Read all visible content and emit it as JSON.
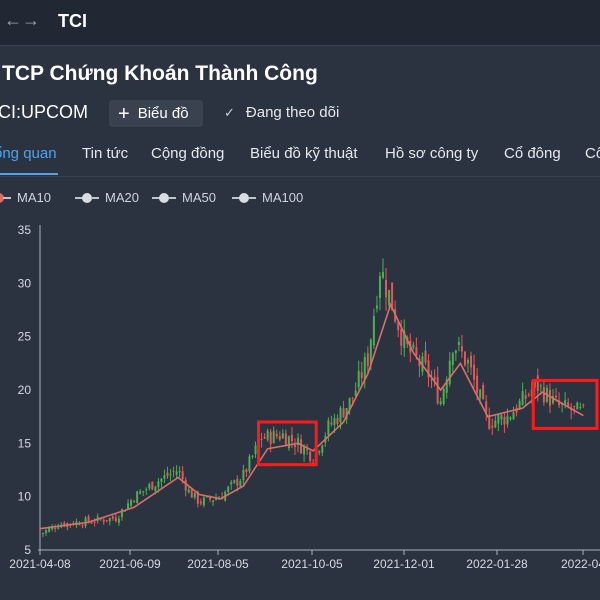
{
  "topbar": {
    "back_icon": "arrow-left-icon",
    "forward_icon": "arrow-right-icon",
    "ticker": "TCI"
  },
  "header": {
    "company_name": "TCP Chứng Khoán Thành Công",
    "exchange": "CI:UPCOM",
    "chart_button_label": "Biểu đồ",
    "follow_label": "Đang theo dõi"
  },
  "tabs": [
    {
      "label": "ổng quan",
      "active": true
    },
    {
      "label": "Tin tức",
      "active": false
    },
    {
      "label": "Cộng đồng",
      "active": false
    },
    {
      "label": "Biểu đồ kỹ thuật",
      "active": false
    },
    {
      "label": "Hồ sơ công ty",
      "active": false
    },
    {
      "label": "Cổ đông",
      "active": false
    },
    {
      "label": "Cô",
      "active": false
    }
  ],
  "legend": [
    {
      "label": "MA10",
      "color": "#e06a6a"
    },
    {
      "label": "MA20",
      "color": "#d8dde2"
    },
    {
      "label": "MA50",
      "color": "#d8dde2"
    },
    {
      "label": "MA100",
      "color": "#d8dde2"
    }
  ],
  "colors": {
    "background": "#2b3240",
    "up_candle": "#4caf50",
    "down_candle": "#e05a5a",
    "ma_line": "#d9706a",
    "highlight_box": "#ff1a1a",
    "accent": "#4aa3f0"
  },
  "chart_data": {
    "type": "candlestick",
    "y_ticks": [
      35,
      30,
      25,
      20,
      15,
      10,
      5
    ],
    "ylim": [
      5,
      35
    ],
    "x_ticks": [
      "2021-04-08",
      "2021-06-09",
      "2021-08-05",
      "2021-10-05",
      "2021-12-01",
      "2022-01-28",
      "2022-04"
    ],
    "close_path": [
      [
        "2021-04-08",
        6.5
      ],
      [
        "2021-04-20",
        7.4
      ],
      [
        "2021-05-10",
        7.7
      ],
      [
        "2021-05-28",
        8.0
      ],
      [
        "2021-06-09",
        10.0
      ],
      [
        "2021-06-25",
        11.5
      ],
      [
        "2021-07-08",
        12.5
      ],
      [
        "2021-07-15",
        10.5
      ],
      [
        "2021-07-22",
        9.5
      ],
      [
        "2021-08-05",
        10.0
      ],
      [
        "2021-08-20",
        12.0
      ],
      [
        "2021-09-01",
        15.5
      ],
      [
        "2021-09-15",
        15.8
      ],
      [
        "2021-09-25",
        15.0
      ],
      [
        "2021-10-05",
        13.8
      ],
      [
        "2021-10-15",
        16.5
      ],
      [
        "2021-10-30",
        19.0
      ],
      [
        "2021-11-10",
        23.0
      ],
      [
        "2021-11-18",
        31.5
      ],
      [
        "2021-11-25",
        28.5
      ],
      [
        "2021-12-05",
        24.0
      ],
      [
        "2021-12-20",
        21.5
      ],
      [
        "2021-12-28",
        19.0
      ],
      [
        "2022-01-05",
        24.5
      ],
      [
        "2022-01-15",
        22.5
      ],
      [
        "2022-01-28",
        17.0
      ],
      [
        "2022-02-10",
        17.5
      ],
      [
        "2022-02-20",
        19.0
      ],
      [
        "2022-03-01",
        20.5
      ],
      [
        "2022-03-15",
        18.5
      ],
      [
        "2022-04-01",
        17.8
      ]
    ],
    "ma_line_path": [
      [
        "2021-04-08",
        7.0
      ],
      [
        "2021-05-10",
        7.6
      ],
      [
        "2021-06-09",
        9.0
      ],
      [
        "2021-07-08",
        11.8
      ],
      [
        "2021-07-22",
        10.2
      ],
      [
        "2021-08-05",
        9.8
      ],
      [
        "2021-08-20",
        11.0
      ],
      [
        "2021-09-05",
        14.5
      ],
      [
        "2021-09-25",
        15.0
      ],
      [
        "2021-10-05",
        14.3
      ],
      [
        "2021-10-25",
        17.0
      ],
      [
        "2021-11-10",
        21.5
      ],
      [
        "2021-11-25",
        28.0
      ],
      [
        "2021-12-10",
        23.5
      ],
      [
        "2021-12-28",
        20.0
      ],
      [
        "2022-01-10",
        22.5
      ],
      [
        "2022-01-28",
        17.5
      ],
      [
        "2022-02-20",
        18.3
      ],
      [
        "2022-03-05",
        19.8
      ],
      [
        "2022-04-01",
        17.6
      ]
    ],
    "highlight_boxes": [
      {
        "x_start": "2021-08-30",
        "x_end": "2021-10-07",
        "y_low": 13.0,
        "y_high": 17.0
      },
      {
        "x_start": "2022-02-27",
        "x_end": "2022-04-10",
        "y_low": 16.4,
        "y_high": 20.9
      }
    ]
  }
}
